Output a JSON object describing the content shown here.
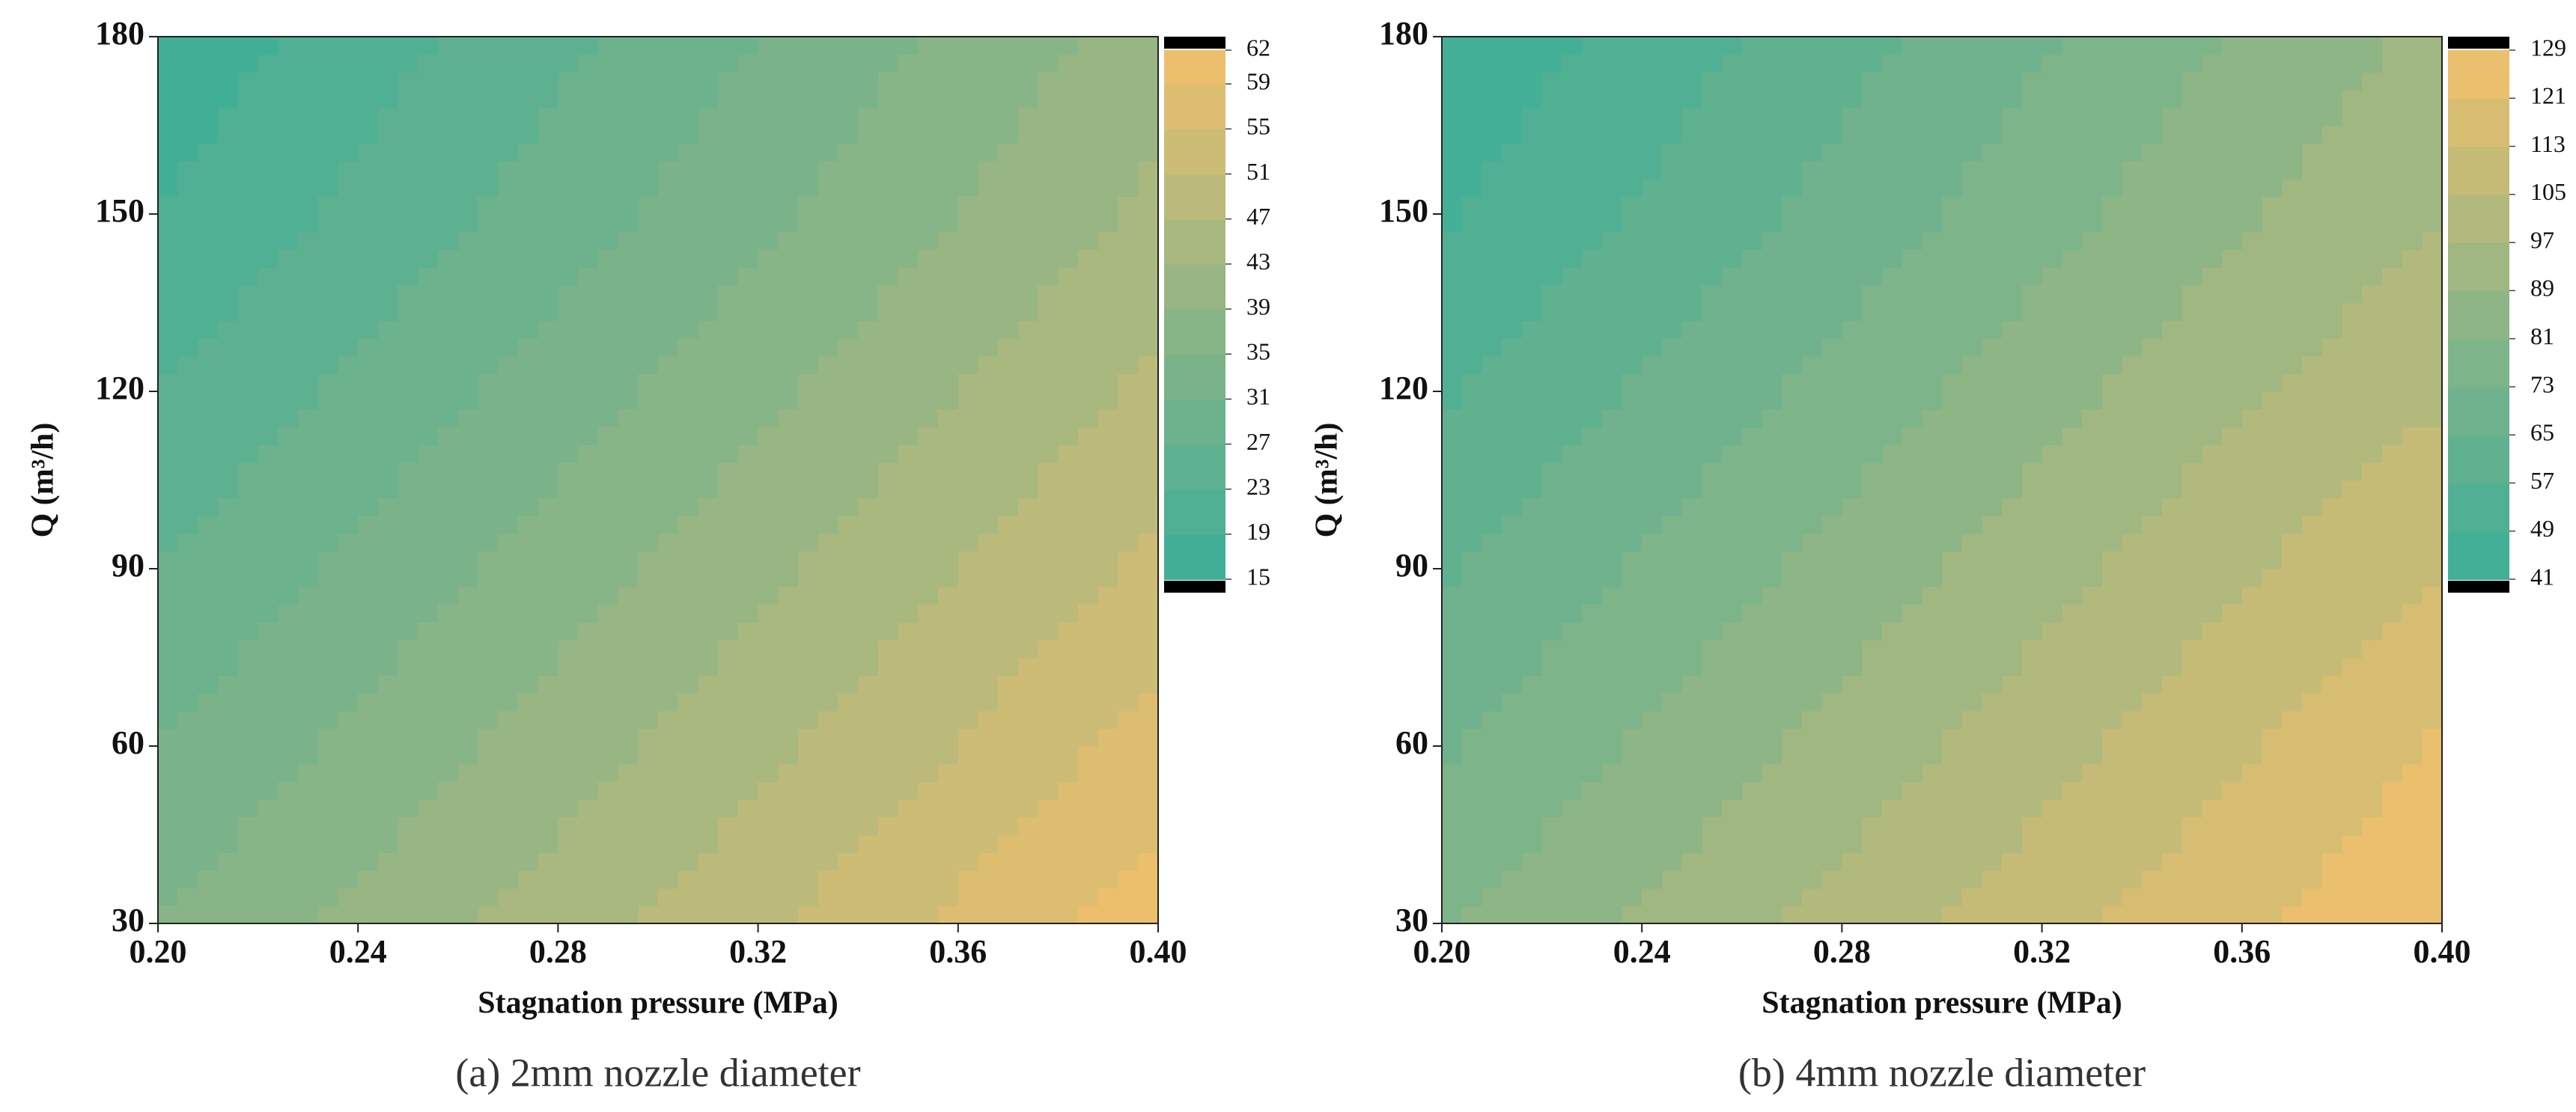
{
  "chart_data": [
    {
      "type": "contour",
      "caption": "(a) 2mm nozzle diameter",
      "xlabel": "Stagnation pressure (MPa)",
      "ylabel": "Q (m³/h)",
      "xlim": [
        0.2,
        0.4
      ],
      "ylim": [
        30,
        180
      ],
      "xticks": [
        {
          "value": 0.2,
          "label": "0.20"
        },
        0.24,
        0.28,
        0.32,
        0.36,
        {
          "value": 0.4,
          "label": "0.40"
        }
      ],
      "yticks": [
        30,
        60,
        90,
        120,
        150,
        180
      ],
      "x_grid": [
        0.2,
        0.24,
        0.28,
        0.32,
        0.36,
        0.4
      ],
      "y_grid": [
        30,
        60,
        90,
        120,
        150,
        180
      ],
      "z": [
        [
          35,
          40,
          45,
          50,
          56,
          61
        ],
        [
          31,
          36,
          41,
          46,
          51,
          57
        ],
        [
          27,
          32,
          37,
          42,
          47,
          52
        ],
        [
          23,
          28,
          33,
          38,
          43,
          48
        ],
        [
          19,
          24,
          29,
          34,
          39,
          44
        ],
        [
          16,
          21,
          26,
          31,
          36,
          41
        ]
      ],
      "levels": [
        15,
        19,
        23,
        27,
        31,
        35,
        39,
        43,
        47,
        51,
        55,
        59,
        62
      ],
      "colormap": [
        "#3aae98",
        "#8db586",
        "#f3c06b"
      ]
    },
    {
      "type": "contour",
      "caption": "(b) 4mm nozzle diameter",
      "xlabel": "Stagnation pressure (MPa)",
      "ylabel": "Q (m³/h)",
      "xlim": [
        0.2,
        0.4
      ],
      "ylim": [
        30,
        180
      ],
      "xticks": [
        {
          "value": 0.2,
          "label": "0.20"
        },
        0.24,
        0.28,
        0.32,
        0.36,
        {
          "value": 0.4,
          "label": "0.40"
        }
      ],
      "yticks": [
        30,
        60,
        90,
        120,
        150,
        180
      ],
      "x_grid": [
        0.2,
        0.24,
        0.28,
        0.32,
        0.36,
        0.4
      ],
      "y_grid": [
        30,
        60,
        90,
        120,
        150,
        180
      ],
      "z": [
        [
          80,
          90,
          100,
          110,
          120,
          128
        ],
        [
          72,
          82,
          92,
          102,
          112,
          122
        ],
        [
          64,
          74,
          84,
          94,
          104,
          113
        ],
        [
          56,
          66,
          76,
          86,
          96,
          104
        ],
        [
          48,
          58,
          68,
          78,
          88,
          97
        ],
        [
          42,
          52,
          62,
          72,
          82,
          91
        ]
      ],
      "levels": [
        41,
        49,
        57,
        65,
        73,
        81,
        89,
        97,
        105,
        113,
        121,
        129
      ],
      "colormap": [
        "#3aae98",
        "#8db586",
        "#f3c06b"
      ]
    }
  ]
}
